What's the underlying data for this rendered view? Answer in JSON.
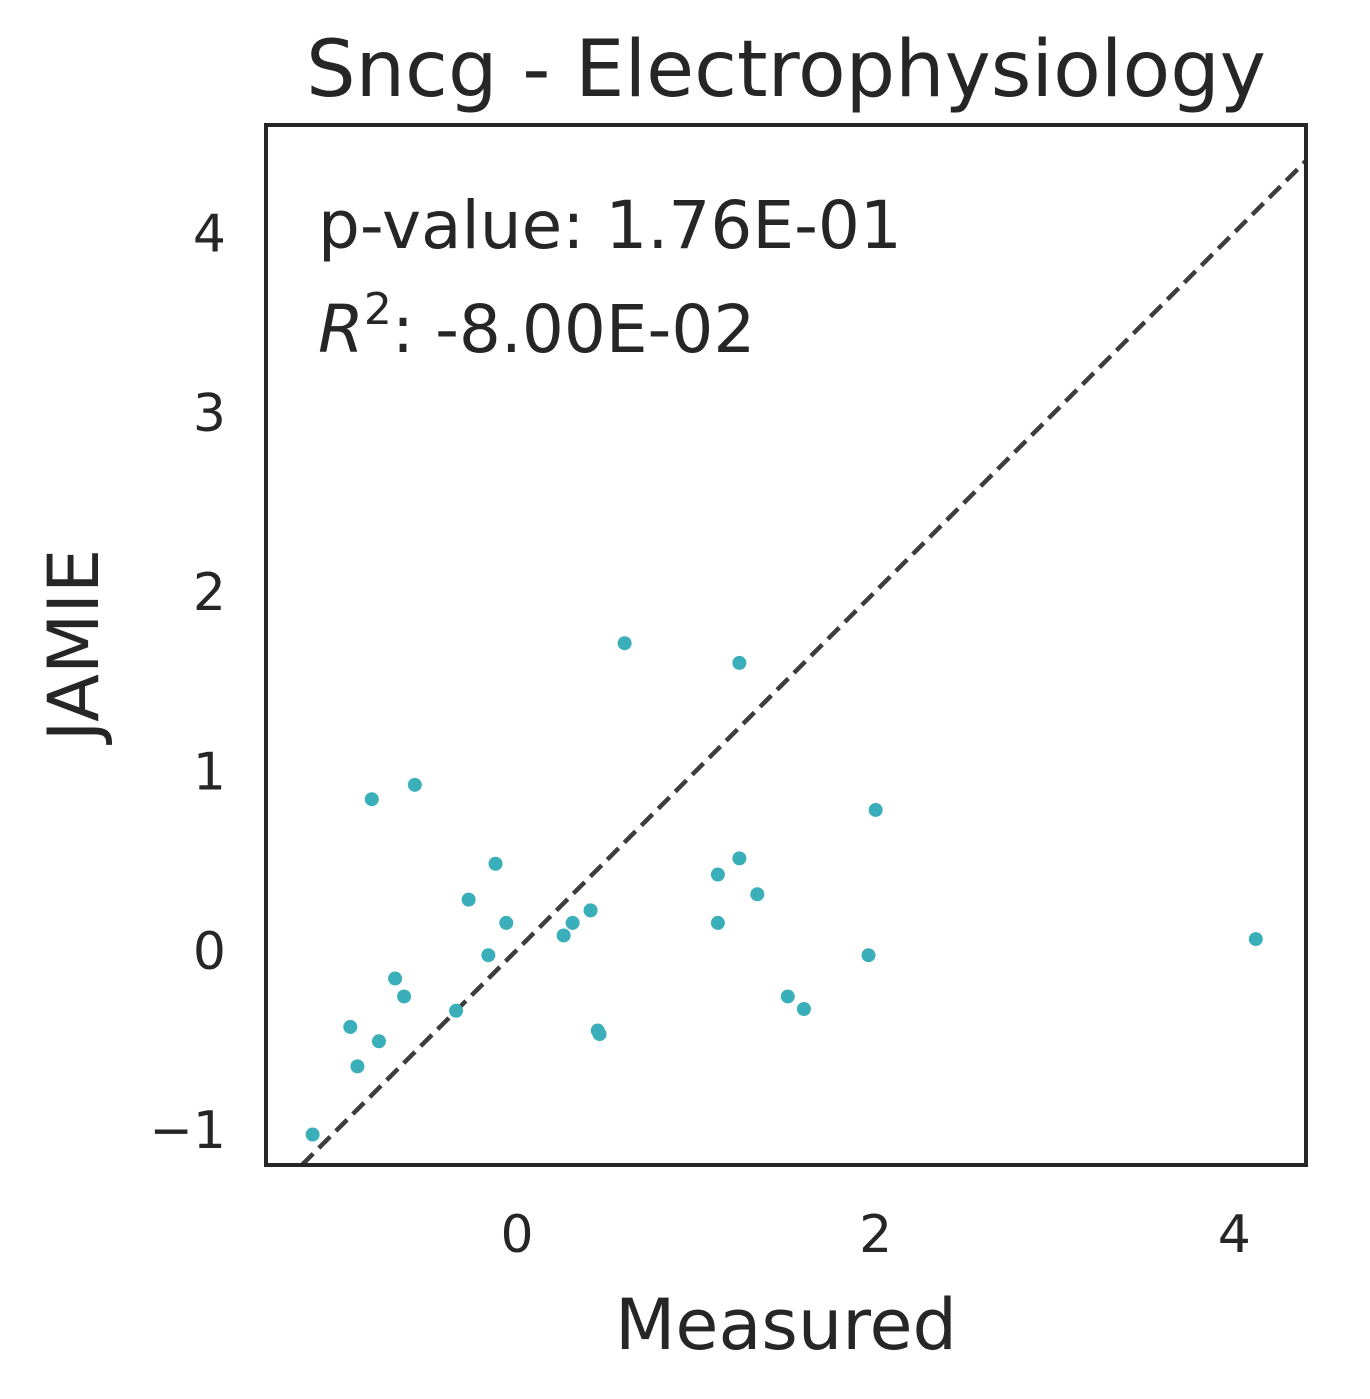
{
  "chart_data": {
    "type": "scatter",
    "title": "Sncg - Electrophysiology",
    "xlabel": "Measured",
    "ylabel": "JAMIE",
    "xlim": [
      -1.4,
      4.4
    ],
    "ylim": [
      -1.2,
      4.6
    ],
    "xticks": [
      0,
      2,
      4
    ],
    "xtick_labels": [
      "0",
      "2",
      "4"
    ],
    "yticks": [
      -1,
      0,
      1,
      2,
      3,
      4
    ],
    "ytick_labels": [
      "−1",
      "0",
      "1",
      "2",
      "3",
      "4"
    ],
    "annotations": {
      "pvalue": "p-value: 1.76E-01",
      "r2_symbol": "R",
      "r2_exponent": "2",
      "r2_value": ": -8.00E-02"
    },
    "reference_line": {
      "style": "dashed",
      "from": [
        -1.4,
        -1.4
      ],
      "to": [
        4.4,
        4.4
      ]
    },
    "point_color": "#3aafb9",
    "grid": false,
    "x": [
      -1.14,
      -0.93,
      -0.89,
      -0.81,
      -0.77,
      -0.68,
      -0.63,
      -0.57,
      -0.34,
      -0.27,
      -0.16,
      -0.12,
      -0.06,
      0.26,
      0.31,
      0.41,
      0.45,
      0.46,
      0.6,
      1.12,
      1.12,
      1.24,
      1.24,
      1.34,
      1.51,
      1.6,
      1.96,
      2.0,
      4.12
    ],
    "y": [
      -1.03,
      -0.43,
      -0.65,
      0.84,
      -0.51,
      -0.16,
      -0.26,
      0.92,
      -0.34,
      0.28,
      -0.03,
      0.48,
      0.15,
      0.08,
      0.15,
      0.22,
      -0.45,
      -0.47,
      1.71,
      0.42,
      0.15,
      0.51,
      1.6,
      0.31,
      -0.26,
      -0.33,
      -0.03,
      0.78,
      0.06
    ]
  }
}
